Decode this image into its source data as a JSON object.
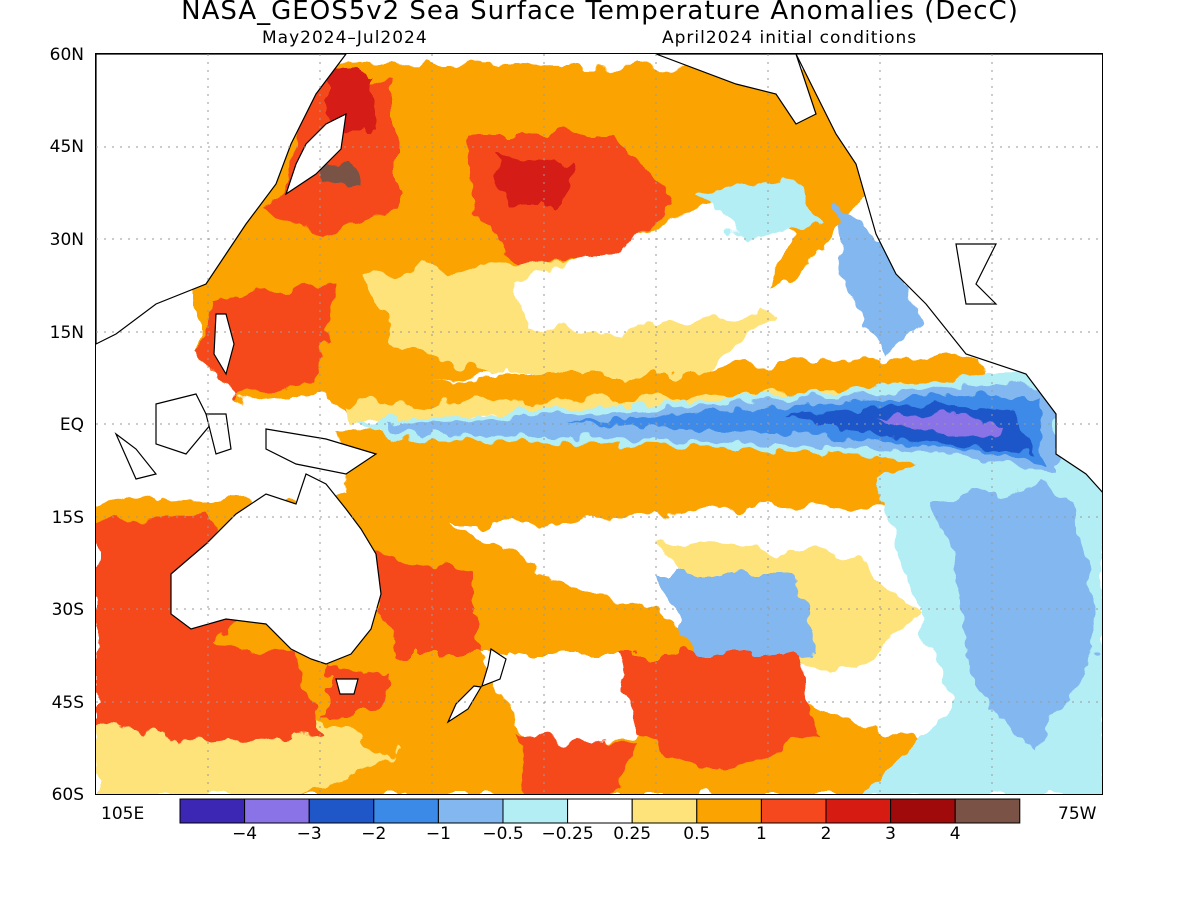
{
  "title": "NASA_GEOS5v2 Sea Surface Temperature Anomalies (DecC)",
  "subtitle_left": "May2024–Jul2024",
  "subtitle_right": "April2024 initial conditions",
  "lat_labels": [
    "60N",
    "45N",
    "30N",
    "15N",
    "EQ",
    "15S",
    "30S",
    "45S",
    "60S"
  ],
  "lon_labels": {
    "left": "105E",
    "right": "75W"
  },
  "colorbar": {
    "colors": [
      "#3c26b4",
      "#8a73e6",
      "#1f57c8",
      "#3c8ae8",
      "#82b8ef",
      "#b4eef5",
      "#ffffff",
      "#fde37a",
      "#fba300",
      "#f5481f",
      "#d61c12",
      "#a00a0a",
      "#7a5246"
    ],
    "labels": [
      "−4",
      "−3",
      "−2",
      "−1",
      "−0.5",
      "−0.25",
      "0.25",
      "0.5",
      "1",
      "2",
      "3",
      "4"
    ]
  },
  "colors": {
    "land": "#ffffff",
    "coast": "#000000",
    "grid": "#9a9a9a"
  }
}
